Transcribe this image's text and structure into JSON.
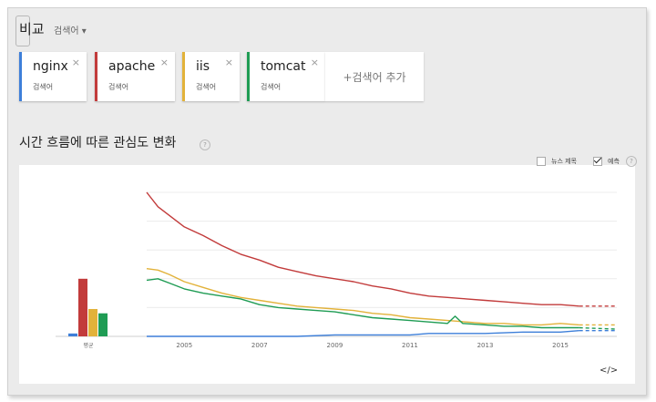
{
  "header": {
    "title": "비교",
    "dropdown_label": "검색어",
    "dropdown_icon": "caret-down-icon"
  },
  "terms": [
    {
      "term": "nginx",
      "sub": "검색어",
      "color": "#3d7fd9"
    },
    {
      "term": "apache",
      "sub": "검색어",
      "color": "#c23b3b"
    },
    {
      "term": "iis",
      "sub": "검색어",
      "color": "#e2b23a"
    },
    {
      "term": "tomcat",
      "sub": "검색어",
      "color": "#1f9c54"
    }
  ],
  "add_label": "+검색어 추가",
  "section": {
    "title": "시간 흐름에 따른 관심도 변화",
    "help": "?"
  },
  "options": {
    "news_label": "뉴스 제목",
    "forecast_label": "예측",
    "help": "?"
  },
  "embed_label": "</>",
  "chart_data": {
    "type": "line",
    "x_ticks": [
      "2005",
      "2007",
      "2009",
      "2011",
      "2013",
      "2015"
    ],
    "avg_label": "평균",
    "ylim": [
      0,
      100
    ],
    "grid": true,
    "forecast": true,
    "averages": [
      {
        "name": "nginx",
        "value": 2
      },
      {
        "name": "apache",
        "value": 40
      },
      {
        "name": "iis",
        "value": 19
      },
      {
        "name": "tomcat",
        "value": 16
      }
    ],
    "series": [
      {
        "name": "nginx",
        "color": "#3d7fd9",
        "x": [
          2004.0,
          2005.0,
          2006.0,
          2007.0,
          2008.0,
          2009.0,
          2009.5,
          2010.0,
          2011.0,
          2011.5,
          2012.0,
          2013.0,
          2014.0,
          2015.0,
          2015.5
        ],
        "y": [
          0,
          0,
          0,
          0,
          0,
          1,
          1,
          1,
          1,
          2,
          2,
          2,
          3,
          3,
          4
        ]
      },
      {
        "name": "apache",
        "color": "#c23b3b",
        "x": [
          2004.0,
          2004.3,
          2004.6,
          2005.0,
          2005.5,
          2006.0,
          2006.5,
          2007.0,
          2007.5,
          2008.0,
          2008.5,
          2009.0,
          2009.5,
          2010.0,
          2010.5,
          2011.0,
          2011.5,
          2012.0,
          2012.5,
          2013.0,
          2013.5,
          2014.0,
          2014.5,
          2015.0,
          2015.5
        ],
        "y": [
          100,
          90,
          84,
          76,
          70,
          63,
          57,
          53,
          48,
          45,
          42,
          40,
          38,
          35,
          33,
          30,
          28,
          27,
          26,
          25,
          24,
          23,
          22,
          22,
          21
        ]
      },
      {
        "name": "iis",
        "color": "#e2b23a",
        "x": [
          2004.0,
          2004.3,
          2004.6,
          2005.0,
          2005.5,
          2006.0,
          2006.5,
          2007.0,
          2007.5,
          2008.0,
          2008.5,
          2009.0,
          2009.5,
          2010.0,
          2010.5,
          2011.0,
          2011.5,
          2012.0,
          2012.5,
          2013.0,
          2013.5,
          2014.0,
          2014.5,
          2015.0,
          2015.5
        ],
        "y": [
          47,
          46,
          43,
          38,
          34,
          30,
          27,
          25,
          23,
          21,
          20,
          19,
          18,
          16,
          15,
          13,
          12,
          11,
          10,
          9,
          9,
          8,
          8,
          9,
          8
        ]
      },
      {
        "name": "tomcat",
        "color": "#1f9c54",
        "x": [
          2004.0,
          2004.3,
          2004.6,
          2005.0,
          2005.5,
          2006.0,
          2006.5,
          2007.0,
          2007.5,
          2008.0,
          2008.5,
          2009.0,
          2009.5,
          2010.0,
          2010.5,
          2011.0,
          2011.5,
          2012.0,
          2012.2,
          2012.4,
          2013.0,
          2013.5,
          2014.0,
          2014.5,
          2015.0,
          2015.5
        ],
        "y": [
          39,
          40,
          37,
          33,
          30,
          28,
          26,
          22,
          20,
          19,
          18,
          17,
          15,
          13,
          12,
          11,
          10,
          9,
          14,
          9,
          8,
          7,
          7,
          6,
          6,
          6
        ]
      }
    ],
    "forecast_series": [
      {
        "name": "apache",
        "x": [
          2015.5,
          2016.5
        ],
        "y": [
          21,
          21
        ]
      },
      {
        "name": "iis",
        "x": [
          2015.5,
          2016.5
        ],
        "y": [
          8,
          8
        ]
      },
      {
        "name": "tomcat",
        "x": [
          2015.5,
          2016.5
        ],
        "y": [
          6,
          5
        ]
      },
      {
        "name": "nginx",
        "x": [
          2015.5,
          2016.5
        ],
        "y": [
          4,
          4
        ]
      }
    ]
  }
}
